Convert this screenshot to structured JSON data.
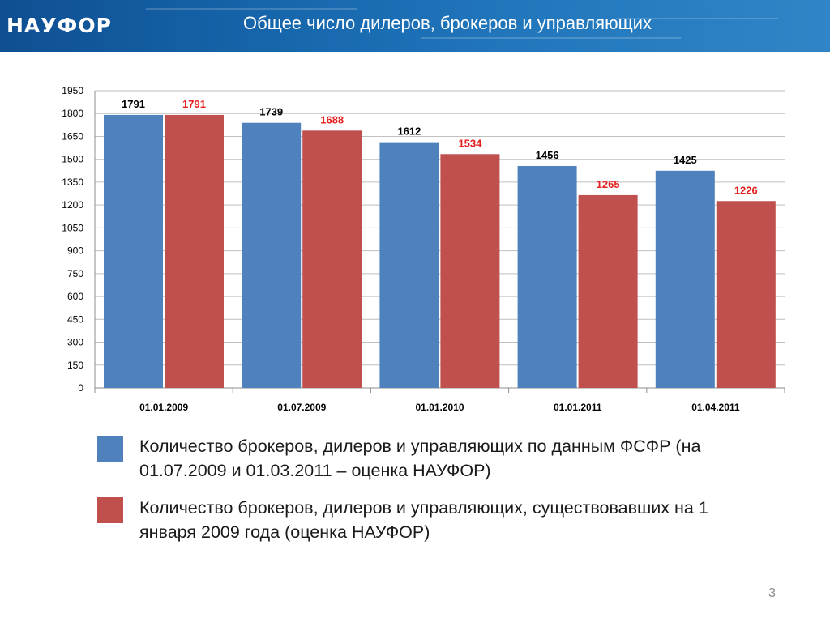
{
  "header": {
    "logo_text": "НАУФОР",
    "title": "Общее число дилеров, брокеров и управляющих"
  },
  "colors": {
    "series_blue": "#4f81bd",
    "series_red": "#c0504d",
    "red_label": "#e32020",
    "header_blue": "#1767ad"
  },
  "chart_data": {
    "type": "bar",
    "categories": [
      "01.01.2009",
      "01.07.2009",
      "01.01.2010",
      "01.01.2011",
      "01.04.2011"
    ],
    "series": [
      {
        "values": [
          1791,
          1739,
          1612,
          1456,
          1425
        ],
        "color": "#4f81bd"
      },
      {
        "values": [
          1791,
          1688,
          1534,
          1265,
          1226
        ],
        "color": "#c0504d"
      }
    ],
    "ylim": [
      0,
      1950
    ],
    "yticks": [
      0,
      150,
      300,
      450,
      600,
      750,
      900,
      1050,
      1200,
      1350,
      1500,
      1650,
      1800,
      1950
    ],
    "grid": true,
    "data_labels": true
  },
  "legend": [
    {
      "text": "Количество брокеров, дилеров и управляющих  по данным ФСФР (на 01.07.2009 и 01.03.2011 – оценка НАУФОР)",
      "color": "#4f81bd"
    },
    {
      "text": "Количество брокеров, дилеров и управляющих, существовавших на 1 января 2009 года (оценка НАУФОР)",
      "color": "#c0504d"
    }
  ],
  "page_number": "3"
}
